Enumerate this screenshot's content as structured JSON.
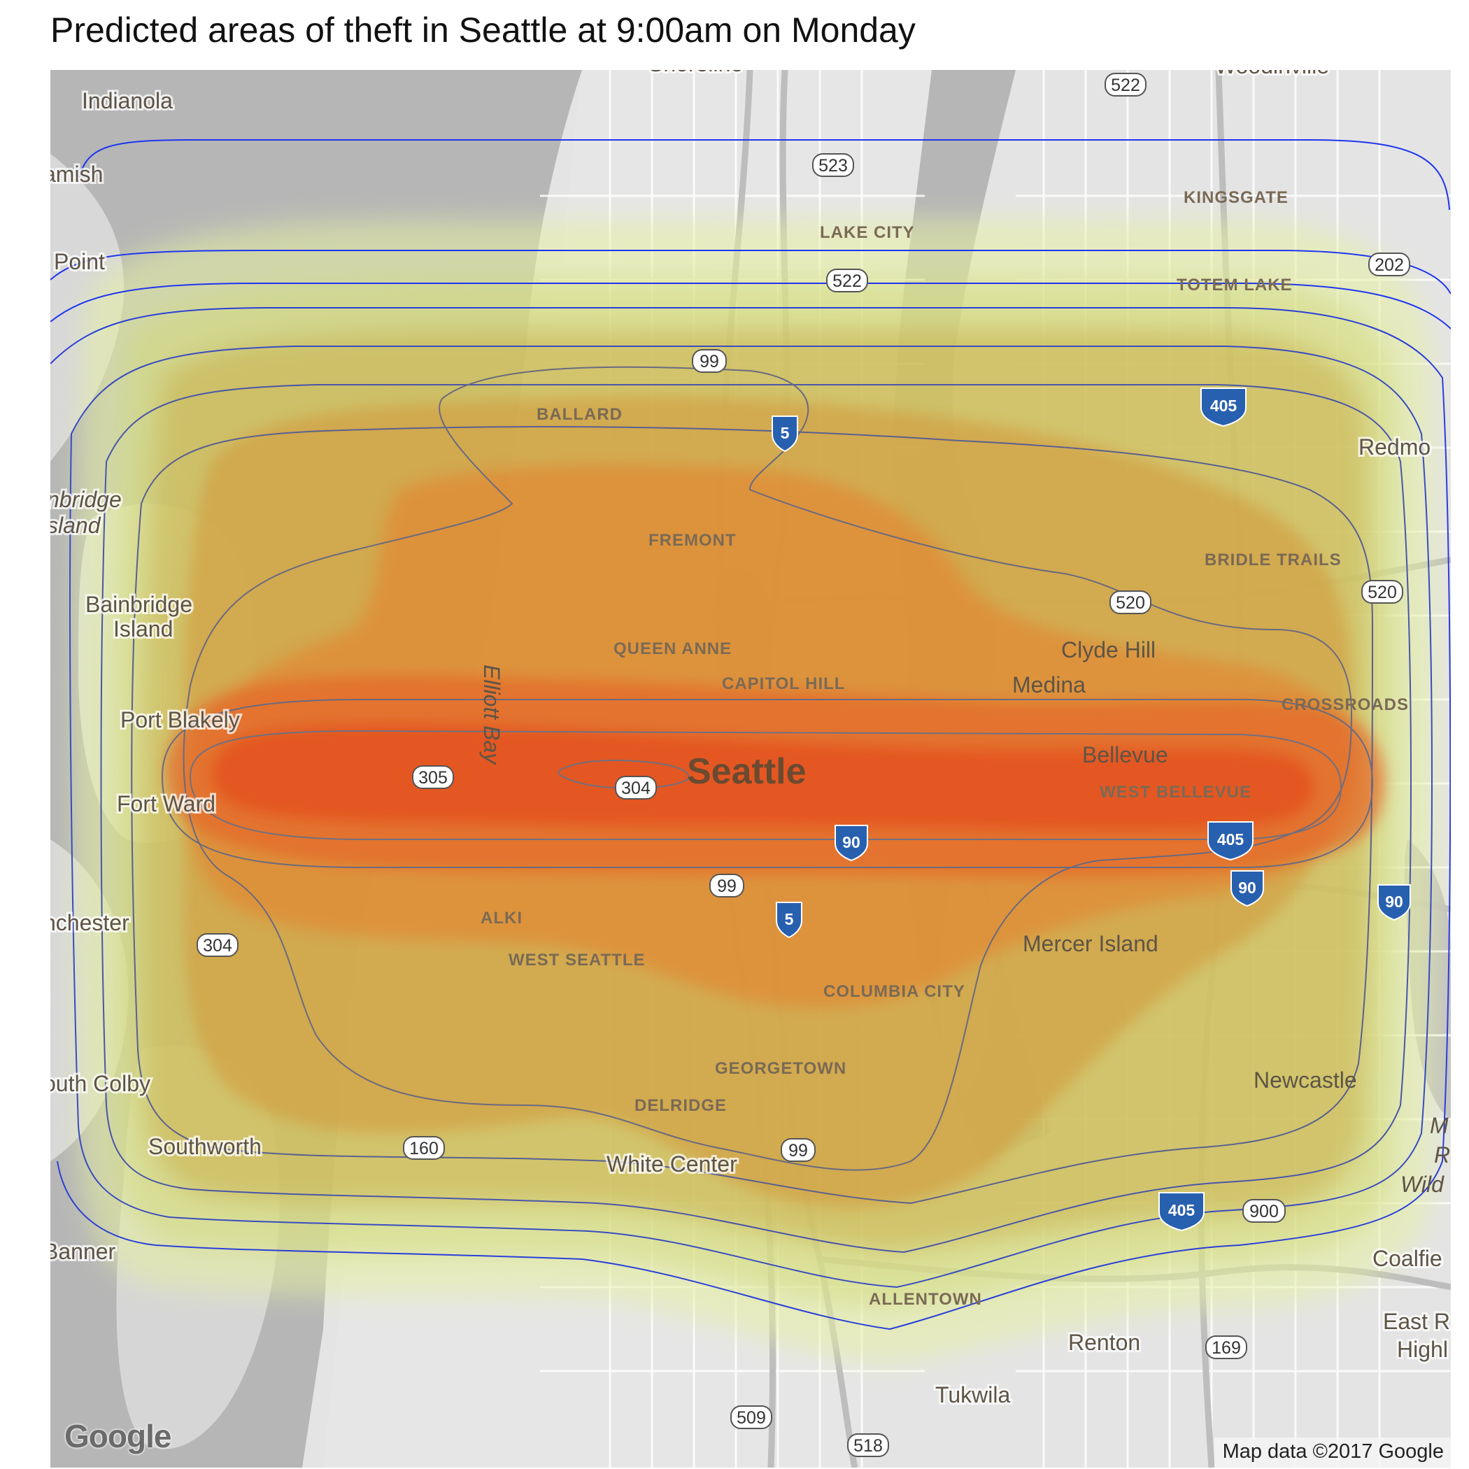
{
  "title": "Predicted areas of theft in Seattle at 9:00am on Monday",
  "map": {
    "provider": "Google",
    "attribution": "Map data ©2017 Google",
    "basemap_colors": {
      "water": "#b6b6b6",
      "land": "#e4e4e4",
      "roads": "#ffffff",
      "highways": "#bdbdbd"
    },
    "overlay": {
      "type": "density-heatmap",
      "fill_scale": [
        "#e6f0a0",
        "#d2d97a",
        "#c9b04e",
        "#d49a3c",
        "#e28232",
        "#e5672a",
        "#e4531f"
      ],
      "contour_inner_color": "#707080",
      "contour_outer_color": "#1f35f0",
      "peak_area": "Seattle / Bellevue east-west corridor"
    },
    "place_labels": [
      {
        "text": "Indianola"
      },
      {
        "text": "amish"
      },
      {
        "text": "Point"
      },
      {
        "text": "nbridge"
      },
      {
        "text": "sland"
      },
      {
        "text": "Bainbridge"
      },
      {
        "text": "Island"
      },
      {
        "text": "Port Blakely"
      },
      {
        "text": "Fort Ward"
      },
      {
        "text": "nchester"
      },
      {
        "text": "outh Colby"
      },
      {
        "text": "Southworth"
      },
      {
        "text": "Banner"
      },
      {
        "text": "BALLARD"
      },
      {
        "text": "FREMONT"
      },
      {
        "text": "QUEEN ANNE"
      },
      {
        "text": "CAPITOL HILL"
      },
      {
        "text": "Seattle"
      },
      {
        "text": "Elliott Bay"
      },
      {
        "text": "ALKI"
      },
      {
        "text": "WEST SEATTLE"
      },
      {
        "text": "COLUMBIA CITY"
      },
      {
        "text": "GEORGETOWN"
      },
      {
        "text": "DELRIDGE"
      },
      {
        "text": "White Center"
      },
      {
        "text": "ALLENTOWN"
      },
      {
        "text": "Tukwila"
      },
      {
        "text": "Renton"
      },
      {
        "text": "Mercer Island"
      },
      {
        "text": "Clyde Hill"
      },
      {
        "text": "Medina"
      },
      {
        "text": "Bellevue"
      },
      {
        "text": "WEST BELLEVUE"
      },
      {
        "text": "CROSSROADS"
      },
      {
        "text": "BRIDLE TRAILS"
      },
      {
        "text": "Newcastle"
      },
      {
        "text": "KINGSGATE"
      },
      {
        "text": "LAKE CITY"
      },
      {
        "text": "TOTEM LAKE"
      },
      {
        "text": "Redmo"
      },
      {
        "text": "Woodinville"
      },
      {
        "text": "Shoreline"
      },
      {
        "text": "Coalfie"
      },
      {
        "text": "East R"
      },
      {
        "text": "Highl"
      },
      {
        "text": "M"
      },
      {
        "text": "R"
      },
      {
        "text": "Wild"
      }
    ],
    "route_shields": [
      {
        "text": "522"
      },
      {
        "text": "523"
      },
      {
        "text": "522"
      },
      {
        "text": "99"
      },
      {
        "text": "5"
      },
      {
        "text": "202"
      },
      {
        "text": "405"
      },
      {
        "text": "520"
      },
      {
        "text": "520"
      },
      {
        "text": "305"
      },
      {
        "text": "304"
      },
      {
        "text": "90"
      },
      {
        "text": "405"
      },
      {
        "text": "90"
      },
      {
        "text": "90"
      },
      {
        "text": "99"
      },
      {
        "text": "5"
      },
      {
        "text": "304"
      },
      {
        "text": "160"
      },
      {
        "text": "99"
      },
      {
        "text": "405"
      },
      {
        "text": "900"
      },
      {
        "text": "169"
      },
      {
        "text": "509"
      },
      {
        "text": "518"
      }
    ]
  }
}
